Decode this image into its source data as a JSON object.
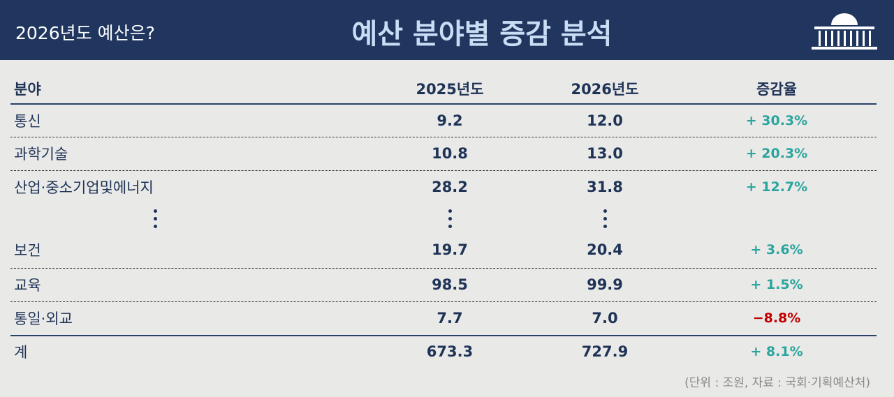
{
  "header": {
    "subtitle": "2026년도 예산은?",
    "title": "예산 분야별 증감 분석"
  },
  "table": {
    "columns": [
      "분야",
      "2025년도",
      "2026년도",
      "증감율"
    ],
    "rows": [
      [
        "통신",
        "9.2",
        "12.0",
        "+ 30.3%"
      ],
      [
        "과학기술",
        "10.8",
        "13.0",
        "+ 20.3%"
      ],
      [
        "산업·중소기업및에너지",
        "28.2",
        "31.8",
        "+ 12.7%"
      ],
      [
        "보건",
        "19.7",
        "20.4",
        "+ 3.6%"
      ],
      [
        "교육",
        "98.5",
        "99.9",
        "+ 1.5%"
      ],
      [
        "통일·외교",
        "7.7",
        "7.0",
        "−8.8%"
      ],
      [
        "계",
        "673.3",
        "727.9",
        "+ 8.1%"
      ]
    ]
  },
  "footnote": "(단위 : 조원, 자료 : 국회·기획예산처)"
}
